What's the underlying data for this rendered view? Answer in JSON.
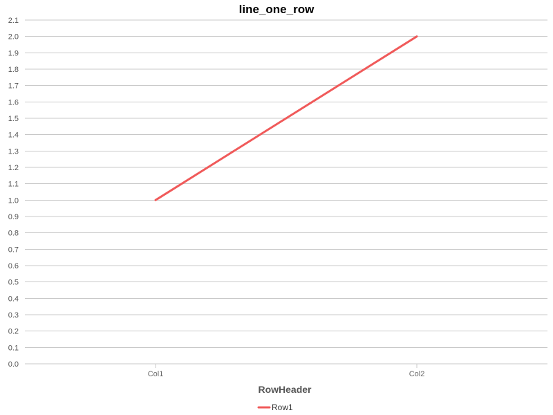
{
  "chart_data": {
    "type": "line",
    "title": "line_one_row",
    "xlabel": "RowHeader",
    "ylabel": "",
    "categories": [
      "Col1",
      "Col2"
    ],
    "series": [
      {
        "name": "Row1",
        "values": [
          1.0,
          2.0
        ],
        "color": "#f05a5a"
      }
    ],
    "ylim": [
      0.0,
      2.1
    ],
    "y_ticks": [
      "0.0",
      "0.1",
      "0.2",
      "0.3",
      "0.4",
      "0.5",
      "0.6",
      "0.7",
      "0.8",
      "0.9",
      "1.0",
      "1.1",
      "1.2",
      "1.3",
      "1.4",
      "1.5",
      "1.6",
      "1.7",
      "1.8",
      "1.9",
      "2.0",
      "2.1"
    ],
    "grid": true,
    "legend_position": "bottom-center",
    "colors": {
      "grid": "#c8c8c8",
      "axis": "#c8c8c8"
    }
  }
}
